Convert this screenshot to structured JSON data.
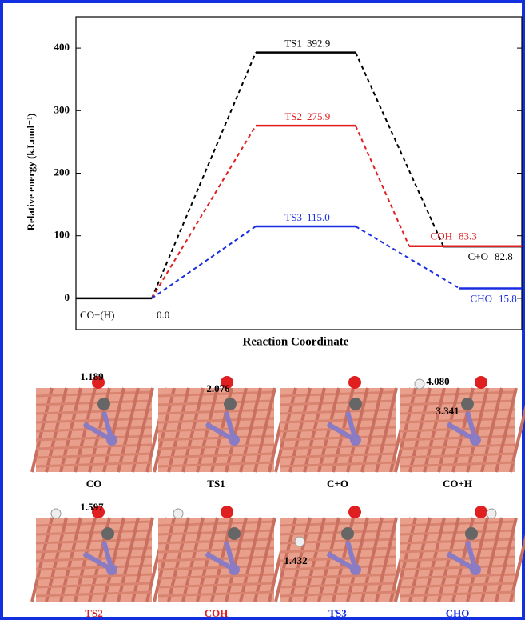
{
  "chart_data": {
    "type": "energy-profile",
    "ylabel": "Relative energy (kJ.mol⁻¹)",
    "xlabel": "Reaction Coordinate",
    "ylim": [
      -50,
      450
    ],
    "yticks": [
      0,
      100,
      200,
      300,
      400
    ],
    "start": {
      "label": "CO+(H)",
      "value": 0,
      "value_label": "0.0",
      "color": "#000000"
    },
    "series": [
      {
        "color": "#000000",
        "labels": [
          "TS1",
          "C+O"
        ],
        "values": [
          392.9,
          82.8
        ]
      },
      {
        "color": "#e02020",
        "labels": [
          "TS2",
          "COH"
        ],
        "values": [
          275.9,
          83.3
        ]
      },
      {
        "color": "#1a2ee0",
        "labels": [
          "TS3",
          "CHO"
        ],
        "values": [
          115.0,
          15.8
        ],
        "value_labels": [
          "115.0",
          "15.8"
        ]
      }
    ]
  },
  "panels": [
    {
      "caption": "CO",
      "color": "#000000",
      "distances": [
        "1.189"
      ]
    },
    {
      "caption": "TS1",
      "color": "#000000",
      "distances": [
        "2.076"
      ]
    },
    {
      "caption": "C+O",
      "color": "#000000",
      "distances": []
    },
    {
      "caption": "CO+H",
      "color": "#000000",
      "distances": [
        "4.080",
        "3.341"
      ]
    },
    {
      "caption": "TS2",
      "color": "#e02020",
      "distances": [
        "1.597"
      ]
    },
    {
      "caption": "COH",
      "color": "#e02020",
      "distances": []
    },
    {
      "caption": "TS3",
      "color": "#1a2ee0",
      "distances": [
        "1.432"
      ]
    },
    {
      "caption": "CHO",
      "color": "#1a2ee0",
      "distances": []
    }
  ]
}
